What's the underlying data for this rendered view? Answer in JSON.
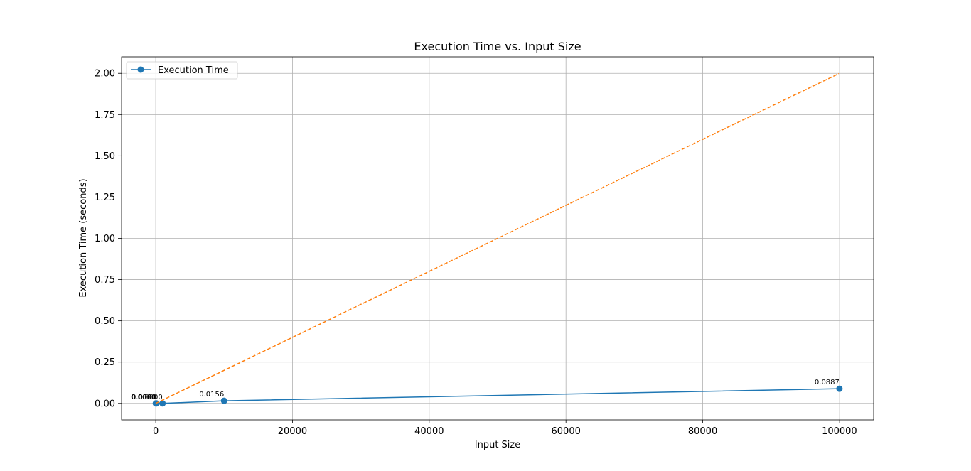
{
  "chart_data": {
    "type": "line",
    "title": "Execution Time vs. Input Size",
    "xlabel": "Input Size",
    "ylabel": "Execution Time (seconds)",
    "xlim": [
      -5000,
      105000
    ],
    "ylim": [
      -0.1,
      2.1
    ],
    "xticks": [
      0,
      20000,
      40000,
      60000,
      80000,
      100000
    ],
    "xtick_labels": [
      "0",
      "20000",
      "40000",
      "60000",
      "80000",
      "100000"
    ],
    "yticks": [
      0.0,
      0.25,
      0.5,
      0.75,
      1.0,
      1.25,
      1.5,
      1.75,
      2.0
    ],
    "ytick_labels": [
      "0.00",
      "0.25",
      "0.50",
      "0.75",
      "1.00",
      "1.25",
      "1.50",
      "1.75",
      "2.00"
    ],
    "grid": true,
    "legend_position": "upper-left",
    "series": [
      {
        "name": "Execution Time",
        "style": "solid-marker",
        "color": "#1f77b4",
        "x": [
          10,
          100,
          1000,
          10000,
          100000
        ],
        "y": [
          0.0,
          0.0,
          0.0,
          0.0156,
          0.0887
        ],
        "labels": [
          "0.0000",
          "0.0000",
          "0.0000",
          "0.0156",
          "0.0887"
        ]
      },
      {
        "style": "dashed",
        "color": "#ff7f0e",
        "x": [
          0,
          100000
        ],
        "y": [
          0.0,
          2.0
        ]
      }
    ]
  }
}
